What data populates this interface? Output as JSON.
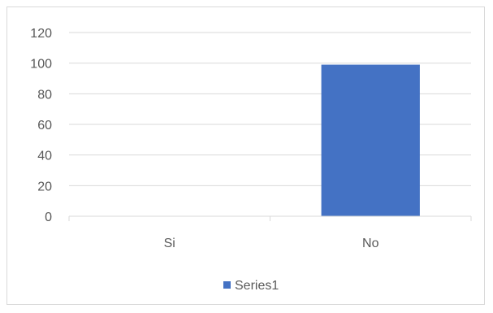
{
  "chart_data": {
    "type": "bar",
    "categories": [
      "Si",
      "No"
    ],
    "series": [
      {
        "name": "Series1",
        "values": [
          0,
          99
        ],
        "color": "#4472C4"
      }
    ],
    "ylim": [
      0,
      120
    ],
    "yticks": [
      0,
      20,
      40,
      60,
      80,
      100,
      120
    ],
    "title": "",
    "xlabel": "",
    "ylabel": "",
    "grid": true,
    "legend_position": "bottom"
  }
}
